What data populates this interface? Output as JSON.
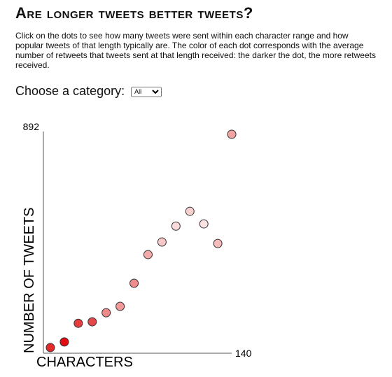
{
  "header": {
    "title": "Are longer tweets better tweets?",
    "description": "Click on the dots to see how many tweets were sent within each character range and how popular tweets of that length typically are. The color of each dot corresponds with the average number of retweets that tweets sent at that length received: the darker the dot, the more retweets received."
  },
  "controls": {
    "label": "Choose a category:",
    "options": [
      "All"
    ]
  },
  "chart_data": {
    "type": "scatter",
    "x_label": "CHARACTERS",
    "y_label": "NUMBER OF TWEETS",
    "x": [
      5,
      15,
      25,
      35,
      45,
      55,
      65,
      75,
      85,
      95,
      105,
      115,
      125,
      135
    ],
    "series": [
      {
        "values": [
          23,
          46,
          122,
          128,
          165,
          191,
          285,
          402,
          453,
          518,
          578,
          527,
          447,
          892
        ],
        "colors": [
          "#e4292b",
          "#e00d12",
          "#e23c3f",
          "#e3474a",
          "#ef8a8a",
          "#f19898",
          "#ef8b8b",
          "#f4a9a9",
          "#f7c8c8",
          "#fadada",
          "#f8d0d0",
          "#fbe2e2",
          "#f6bcbc",
          "#f3a3a3"
        ]
      }
    ],
    "xlim": [
      0,
      140
    ],
    "ylim": [
      0,
      892
    ],
    "xticks": [
      140
    ],
    "yticks": [
      892
    ]
  }
}
